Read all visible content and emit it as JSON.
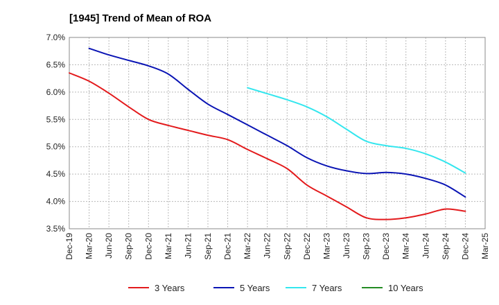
{
  "chart_data": {
    "type": "line",
    "title": "[1945]  Trend of Mean of ROA",
    "xlabel": "",
    "ylabel": "",
    "x": [
      "Dec-19",
      "Mar-20",
      "Jun-20",
      "Sep-20",
      "Dec-20",
      "Mar-21",
      "Jun-21",
      "Sep-21",
      "Dec-21",
      "Mar-22",
      "Jun-22",
      "Sep-22",
      "Dec-22",
      "Mar-23",
      "Jun-23",
      "Sep-23",
      "Dec-23",
      "Mar-24",
      "Jun-24",
      "Sep-24",
      "Dec-24",
      "Mar-25"
    ],
    "ylim": [
      3.5,
      7.0
    ],
    "yticks": [
      3.5,
      4.0,
      4.5,
      5.0,
      5.5,
      6.0,
      6.5,
      7.0
    ],
    "ytick_labels": [
      "3.5%",
      "4.0%",
      "4.5%",
      "5.0%",
      "5.5%",
      "6.0%",
      "6.5%",
      "7.0%"
    ],
    "grid": true,
    "legend_position": "bottom",
    "series": [
      {
        "name": "3 Years",
        "color": "#e31a1c",
        "values": [
          6.35,
          6.2,
          5.98,
          5.73,
          5.5,
          5.39,
          5.3,
          5.21,
          5.13,
          4.95,
          4.78,
          4.6,
          4.3,
          4.1,
          3.9,
          3.7,
          3.67,
          3.7,
          3.77,
          3.86,
          3.82,
          null
        ]
      },
      {
        "name": "5 Years",
        "color": "#0a14b4",
        "values": [
          null,
          6.8,
          6.68,
          6.58,
          6.48,
          6.33,
          6.05,
          5.78,
          5.59,
          5.4,
          5.21,
          5.02,
          4.8,
          4.65,
          4.56,
          4.51,
          4.53,
          4.5,
          4.42,
          4.3,
          4.08,
          null
        ]
      },
      {
        "name": "7 Years",
        "color": "#33e6ee",
        "values": [
          null,
          null,
          null,
          null,
          null,
          null,
          null,
          null,
          null,
          6.08,
          5.97,
          5.86,
          5.73,
          5.55,
          5.32,
          5.1,
          5.02,
          4.97,
          4.87,
          4.72,
          4.52,
          null
        ]
      },
      {
        "name": "10 Years",
        "color": "#228b22",
        "values": [
          null,
          null,
          null,
          null,
          null,
          null,
          null,
          null,
          null,
          null,
          null,
          null,
          null,
          null,
          null,
          null,
          null,
          null,
          null,
          null,
          null,
          null
        ]
      }
    ]
  }
}
